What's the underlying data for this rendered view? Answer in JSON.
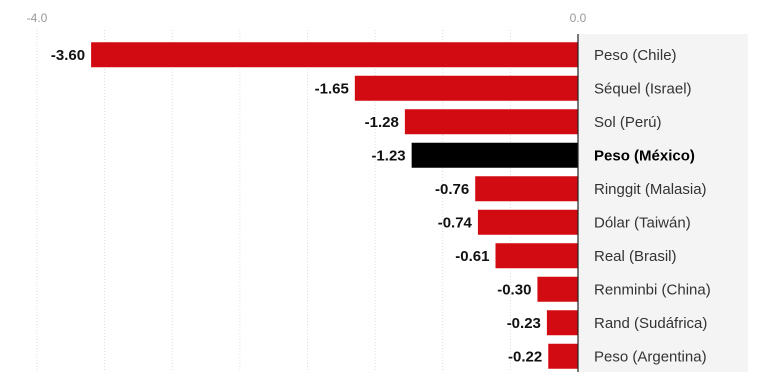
{
  "chart_data": {
    "type": "bar",
    "orientation": "horizontal",
    "categories": [
      "Peso (Chile)",
      "Séquel (Israel)",
      "Sol (Perú)",
      "Peso (México)",
      "Ringgit (Malasia)",
      "Dólar (Taiwán)",
      "Real (Brasil)",
      "Renminbi (China)",
      "Rand (Sudáfrica)",
      "Peso (Argentina)"
    ],
    "values": [
      -3.6,
      -1.65,
      -1.28,
      -1.23,
      -0.76,
      -0.74,
      -0.61,
      -0.3,
      -0.23,
      -0.22
    ],
    "value_labels": [
      "-3.60",
      "-1.65",
      "-1.28",
      "-1.23",
      "-0.76",
      "-0.74",
      "-0.61",
      "-0.30",
      "-0.23",
      "-0.22"
    ],
    "highlight": "Peso (México)",
    "xlim": [
      -4.0,
      0.0
    ],
    "tick_labels": [
      "-4.0",
      "0.0"
    ],
    "grid": true,
    "colors": {
      "bar": "#d20a11",
      "highlight": "#000000"
    }
  }
}
